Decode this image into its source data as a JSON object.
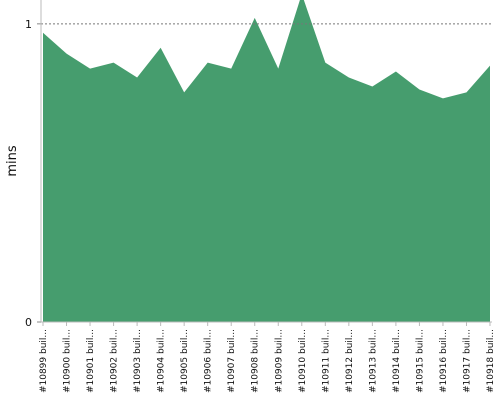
{
  "chart_data": {
    "type": "area",
    "y_label": "mins",
    "categories": [
      "#10899 buil...",
      "#10900 buil...",
      "#10901 buil...",
      "#10902 buil...",
      "#10903 buil...",
      "#10904 buil...",
      "#10905 buil...",
      "#10906 buil...",
      "#10907 buil...",
      "#10908 buil...",
      "#10909 buil...",
      "#10910 buil...",
      "#10911 buil...",
      "#10912 buil...",
      "#10913 buil...",
      "#10914 buil...",
      "#10915 buil...",
      "#10916 buil...",
      "#10917 buil...",
      "#10918 buil..."
    ],
    "values": [
      0.97,
      0.9,
      0.85,
      0.87,
      0.82,
      0.92,
      0.77,
      0.87,
      0.85,
      1.02,
      0.85,
      1.1,
      0.87,
      0.82,
      0.79,
      0.84,
      0.78,
      0.75,
      0.77,
      0.86
    ],
    "color": "#469d6e",
    "ylim": [
      0,
      1.08
    ],
    "yticks": [
      0,
      1
    ],
    "grid": true
  }
}
